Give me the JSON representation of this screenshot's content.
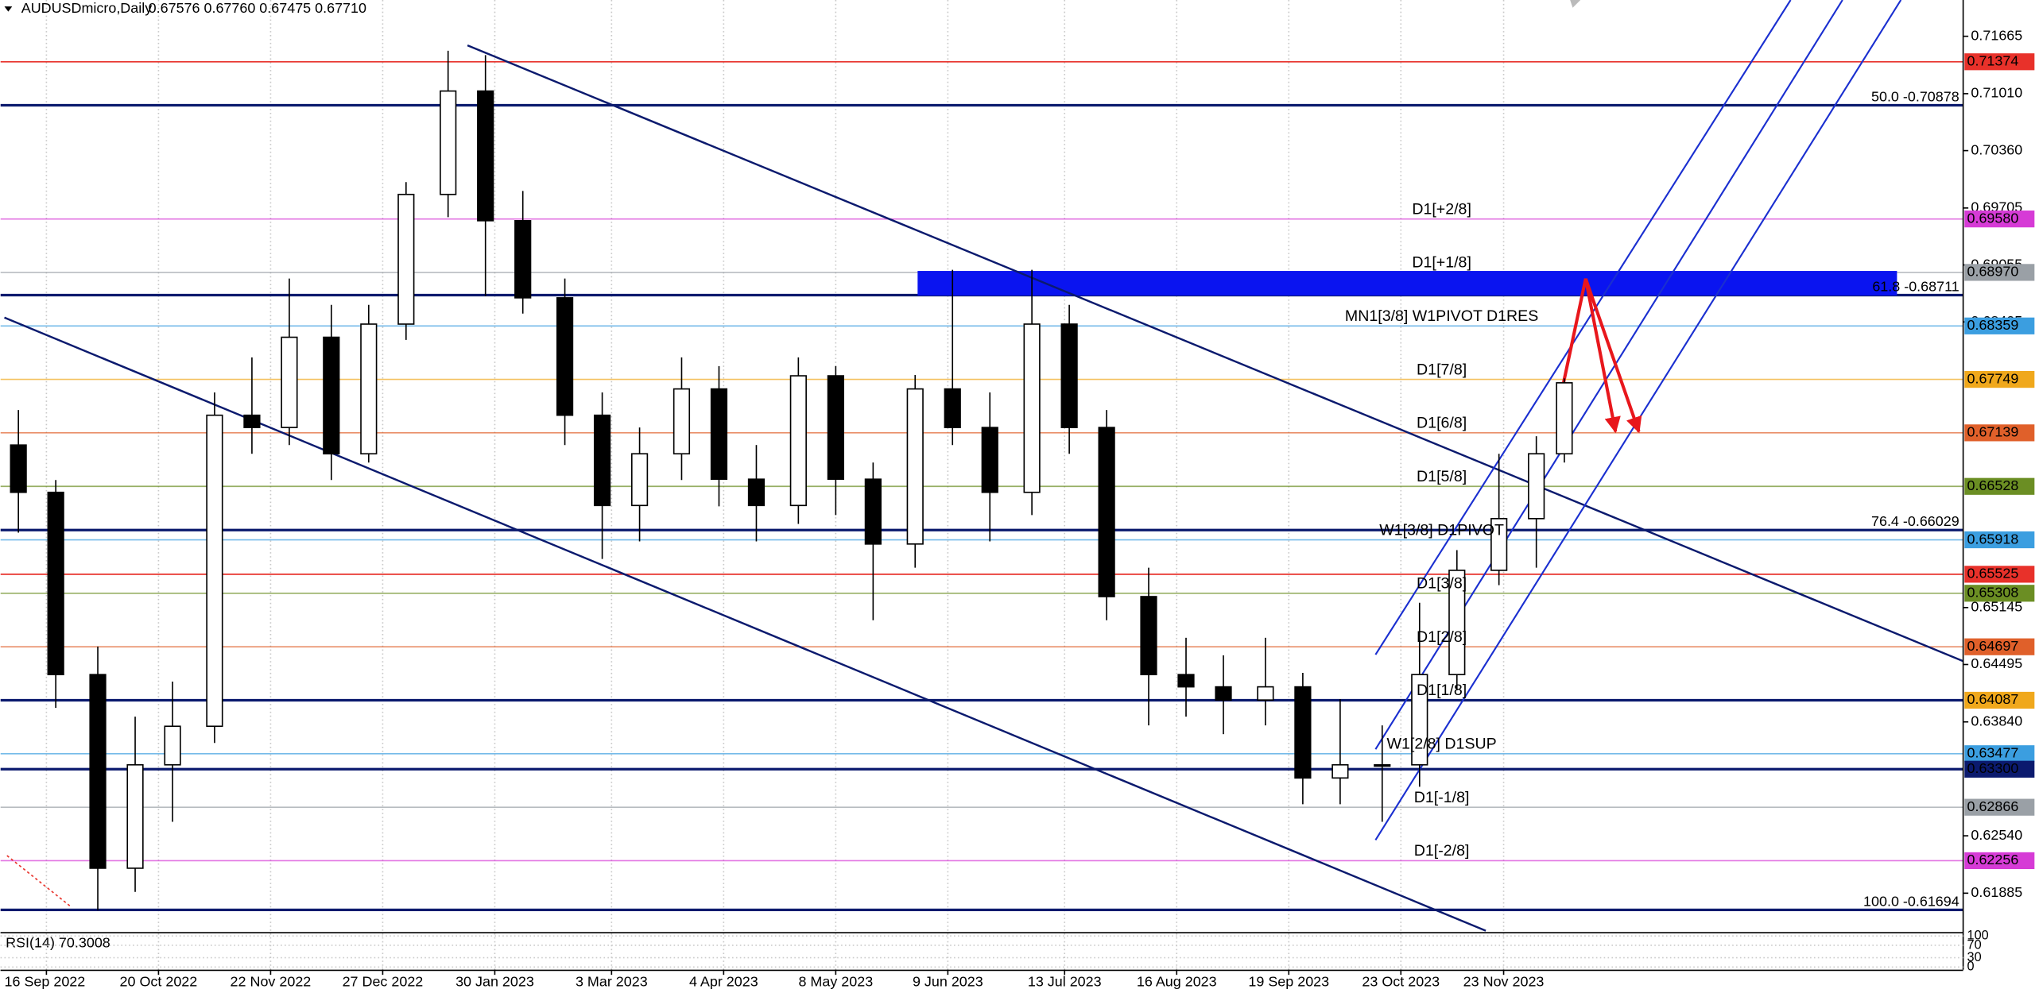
{
  "chart_data": {
    "type": "candlestick",
    "symbol": "AUDUSDmicro,Daily",
    "quote": "0.67576 0.67760 0.67475 0.67710",
    "xlim": [
      0,
      419
    ],
    "ylim": [
      0.61456,
      0.72079
    ],
    "xticks": [
      {
        "value": 9,
        "label": "16 Sep 2022"
      },
      {
        "value": 33,
        "label": "20 Oct 2022"
      },
      {
        "value": 57,
        "label": "22 Nov 2022"
      },
      {
        "value": 81,
        "label": "27 Dec 2022"
      },
      {
        "value": 105,
        "label": "30 Jan 2023"
      },
      {
        "value": 130,
        "label": "3 Mar 2023"
      },
      {
        "value": 154,
        "label": "4 Apr 2023"
      },
      {
        "value": 178,
        "label": "8 May 2023"
      },
      {
        "value": 202,
        "label": "9 Jun 2023"
      },
      {
        "value": 227,
        "label": "13 Jul 2023"
      },
      {
        "value": 251,
        "label": "16 Aug 2023"
      },
      {
        "value": 275,
        "label": "19 Sep 2023"
      },
      {
        "value": 299,
        "label": "23 Oct 2023"
      },
      {
        "value": 321,
        "label": "23 Nov 2023"
      }
    ],
    "yticks": [
      0.71665,
      {
        "value": 0.7101,
        "label": "0.71010"
      },
      {
        "value": 0.7036,
        "label": "0.70360"
      },
      0.69705,
      0.69055,
      0.68405,
      0.65145,
      0.64495,
      {
        "value": 0.6384,
        "label": "0.63840"
      },
      {
        "value": 0.6254,
        "label": "0.62540"
      },
      0.61885
    ],
    "x": [
      3,
      11,
      20,
      28,
      36,
      45,
      53,
      61,
      70,
      78,
      86,
      95,
      103,
      111,
      120,
      128,
      136,
      145,
      153,
      161,
      170,
      178,
      186,
      195,
      203,
      211,
      220,
      228,
      236,
      245,
      253,
      261,
      270,
      278,
      286,
      295,
      303,
      311,
      320,
      328,
      334
    ],
    "open": [
      0.67,
      0.6646,
      0.6438,
      0.6217,
      0.6335,
      0.6379,
      0.6734,
      0.672,
      0.6823,
      0.669,
      0.6838,
      0.6986,
      0.7104,
      0.6956,
      0.6868,
      0.6734,
      0.6631,
      0.669,
      0.6764,
      0.6661,
      0.6631,
      0.6779,
      0.6661,
      0.6587,
      0.6764,
      0.672,
      0.6646,
      0.6838,
      0.672,
      0.6527,
      0.6438,
      0.6424,
      0.6409,
      0.6424,
      0.632,
      0.6335,
      0.6335,
      0.6438,
      0.6557,
      0.6616,
      0.669
    ],
    "high": [
      0.674,
      0.666,
      0.647,
      0.639,
      0.643,
      0.676,
      0.68,
      0.689,
      0.686,
      0.686,
      0.7,
      0.715,
      0.7145,
      0.699,
      0.689,
      0.676,
      0.672,
      0.68,
      0.679,
      0.67,
      0.68,
      0.679,
      0.668,
      0.678,
      0.69,
      0.676,
      0.69,
      0.686,
      0.674,
      0.656,
      0.648,
      0.646,
      0.648,
      0.644,
      0.641,
      0.638,
      0.652,
      0.658,
      0.669,
      0.671,
      0.6776
    ],
    "low": [
      0.66,
      0.64,
      0.6169,
      0.619,
      0.627,
      0.636,
      0.669,
      0.67,
      0.666,
      0.668,
      0.682,
      0.696,
      0.687,
      0.685,
      0.67,
      0.657,
      0.659,
      0.666,
      0.663,
      0.659,
      0.661,
      0.662,
      0.65,
      0.656,
      0.67,
      0.659,
      0.662,
      0.669,
      0.65,
      0.638,
      0.639,
      0.637,
      0.638,
      0.629,
      0.629,
      0.627,
      0.631,
      0.642,
      0.654,
      0.656,
      0.668
    ],
    "close": [
      0.6646,
      0.6438,
      0.6217,
      0.6335,
      0.6379,
      0.6734,
      0.672,
      0.6823,
      0.669,
      0.6838,
      0.6986,
      0.7104,
      0.6956,
      0.6868,
      0.6734,
      0.6631,
      0.669,
      0.6764,
      0.6661,
      0.6631,
      0.6779,
      0.6661,
      0.6587,
      0.6764,
      0.672,
      0.6646,
      0.6838,
      0.672,
      0.6527,
      0.6438,
      0.6424,
      0.6409,
      0.6424,
      0.632,
      0.6335,
      0.6335,
      0.6438,
      0.6557,
      0.6616,
      0.669,
      0.6771
    ],
    "levels": [
      {
        "value": 0.71374,
        "label": "0.71374",
        "color": "#e8312a"
      },
      {
        "value": 0.6958,
        "label": "0.69580",
        "color": "#d63bd6",
        "name": "D1[+2/8]"
      },
      {
        "value": 0.6897,
        "label": "0.68970",
        "color": "#9aa0a6",
        "name": "D1[+1/8]"
      },
      {
        "value": 0.68359,
        "label": "0.68359",
        "color": "#3b9ee0",
        "name": "MN1[3/8] W1PIVOT D1RES"
      },
      {
        "value": 0.67749,
        "label": "0.67749",
        "color": "#f0a81c",
        "name": "D1[7/8]"
      },
      {
        "value": 0.67139,
        "label": "0.67139",
        "color": "#e0602a",
        "name": "D1[6/8]"
      },
      {
        "value": 0.66528,
        "label": "0.66528",
        "color": "#6b8e23",
        "name": "D1[5/8]"
      },
      {
        "value": 0.65918,
        "label": "0.65918",
        "color": "#3b9ee0",
        "name": "W1[3/8] D1PIVOT"
      },
      {
        "value": 0.65525,
        "label": "0.65525",
        "color": "#e8312a"
      },
      {
        "value": 0.65308,
        "label": "0.65308",
        "color": "#6b8e23",
        "name": "D1[3/8]"
      },
      {
        "value": 0.64697,
        "label": "0.64697",
        "color": "#e0602a",
        "name": "D1[2/8]"
      },
      {
        "value": 0.64087,
        "label": "0.64087",
        "color": "#f0a81c",
        "name": "D1[1/8]",
        "line_color": "#0b1a6e"
      },
      {
        "value": 0.63477,
        "label": "0.63477",
        "color": "#3b9ee0",
        "name": "W1[2/8] D1SUP"
      },
      {
        "value": 0.633,
        "label": "0.63300",
        "color": "#0b1a6e"
      },
      {
        "value": 0.62866,
        "label": "0.62866",
        "color": "#9aa0a6",
        "name": "D1[-1/8]"
      },
      {
        "value": 0.62256,
        "label": "0.62256",
        "color": "#d63bd6",
        "name": "D1[-2/8]"
      }
    ],
    "fib_levels": [
      {
        "value": 0.70878,
        "label": "50.0 -0.70878"
      },
      {
        "value": 0.68711,
        "label": "61.8 -0.68711"
      },
      {
        "value": 0.66029,
        "label": "76.4 -0.66029"
      },
      {
        "value": 0.61694,
        "label": "100.0 -0.61694"
      }
    ],
    "fib_color": "#0b1a6e",
    "rsi": {
      "label": "RSI(14) 70.3008",
      "ylim": [
        0,
        100
      ],
      "yticks": [
        0,
        30,
        70,
        100
      ]
    }
  }
}
